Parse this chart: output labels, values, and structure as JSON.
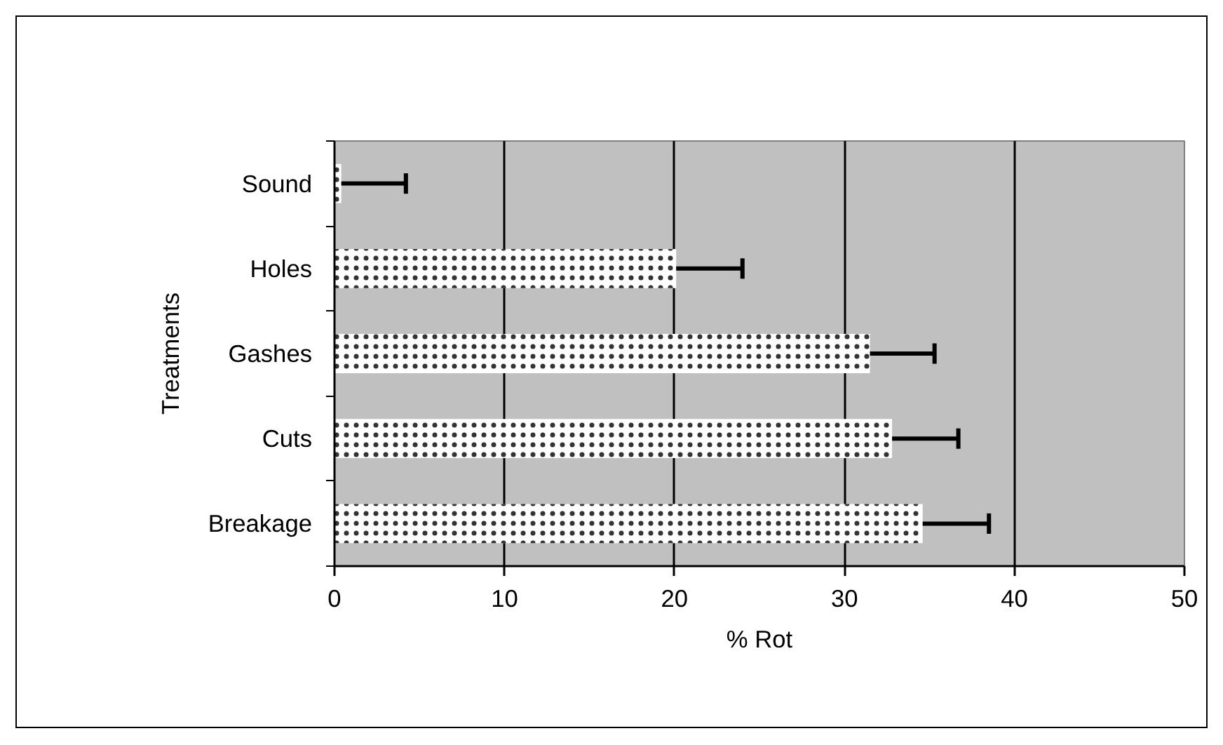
{
  "chart_data": {
    "type": "bar",
    "orientation": "horizontal",
    "xlabel": "% Rot",
    "ylabel": "Treatments",
    "categories": [
      "Sound",
      "Holes",
      "Gashes",
      "Cuts",
      "Breakage"
    ],
    "values": [
      0.4,
      20.1,
      31.5,
      32.8,
      34.6
    ],
    "errors": [
      [
        0.4,
        4.2
      ],
      [
        20.1,
        24.0
      ],
      [
        31.5,
        35.3
      ],
      [
        32.8,
        36.7
      ],
      [
        34.6,
        38.5
      ]
    ],
    "color": "#ffffff",
    "xlim": [
      0,
      50
    ],
    "xticks": [
      0,
      10,
      20,
      30,
      40,
      50
    ],
    "grid": "x"
  }
}
